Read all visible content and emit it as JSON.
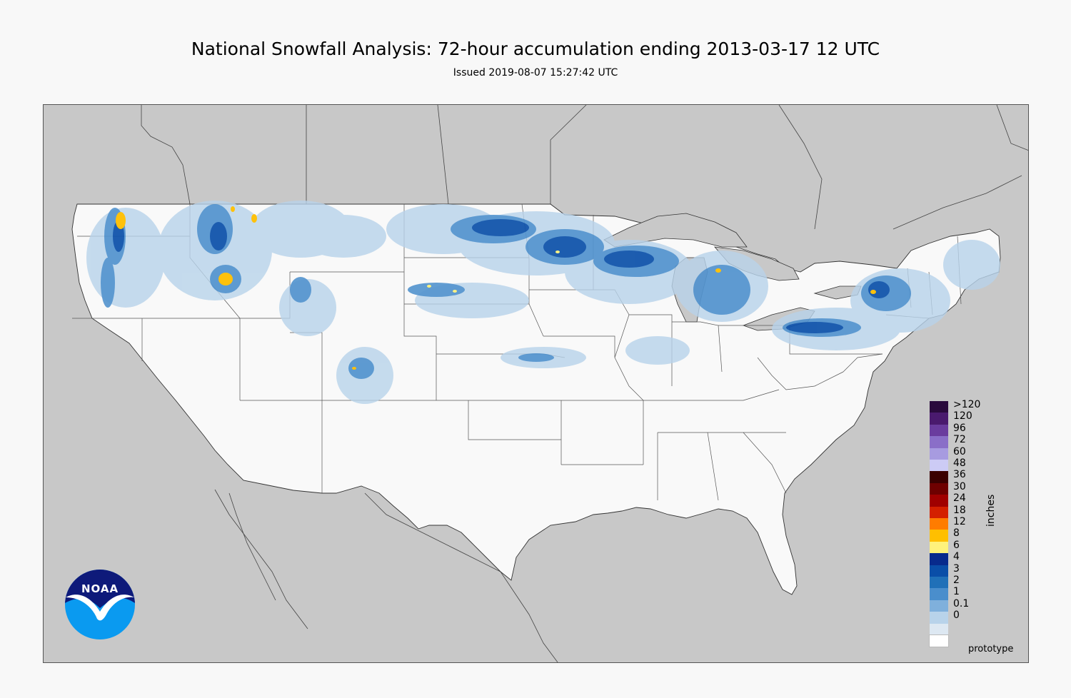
{
  "header": {
    "title": "National Snowfall Analysis: 72-hour accumulation ending 2013-03-17 12 UTC",
    "subtitle": "Issued 2019-08-07 15:27:42 UTC"
  },
  "legend": {
    "units": "inches",
    "bins": [
      {
        "label": ">120",
        "color": "#2a0a3d"
      },
      {
        "label": "120",
        "color": "#4a1a6e"
      },
      {
        "label": "96",
        "color": "#6a3c9e"
      },
      {
        "label": "72",
        "color": "#8a6ec8"
      },
      {
        "label": "60",
        "color": "#a79be0"
      },
      {
        "label": "48",
        "color": "#cccbf5"
      },
      {
        "label": "36",
        "color": "#3a0000"
      },
      {
        "label": "30",
        "color": "#6e0000"
      },
      {
        "label": "24",
        "color": "#a00000"
      },
      {
        "label": "18",
        "color": "#d42000"
      },
      {
        "label": "12",
        "color": "#ff7c00"
      },
      {
        "label": "8",
        "color": "#ffbf00"
      },
      {
        "label": "6",
        "color": "#fff27c"
      },
      {
        "label": "4",
        "color": "#082a8c"
      },
      {
        "label": "3",
        "color": "#0a4ea8"
      },
      {
        "label": "2",
        "color": "#2070b8"
      },
      {
        "label": "1",
        "color": "#4a8ecc"
      },
      {
        "label": "0.1",
        "color": "#7fb0dc"
      },
      {
        "label": "0",
        "color": "#b8d3ea"
      },
      {
        "label": "",
        "color": "#dde8f2"
      },
      {
        "label": "",
        "color": "#ffffff"
      }
    ]
  },
  "footnote": "prototype",
  "logo": {
    "text": "NOAA"
  },
  "colors": {
    "background": "#f8f8f8",
    "ocean_and_neighbors": "#c8c8c8",
    "land_us": "#f9f9f9",
    "lakes": "#c8c8c8"
  }
}
